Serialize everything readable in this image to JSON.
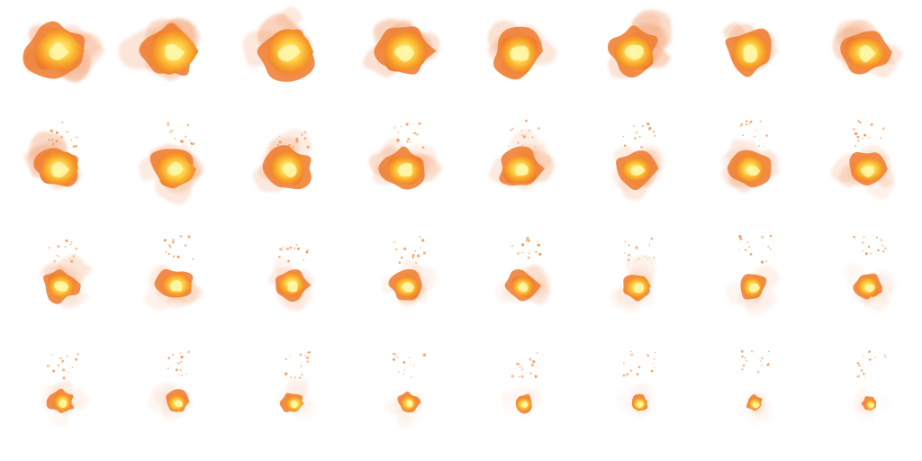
{
  "sprite_sheet": {
    "columns": 8,
    "rows": 4,
    "frame_count": 32,
    "background": "#ffffff",
    "palette": {
      "smoke_light": "#f7c0a0",
      "smoke": "#f2a070",
      "flame_outer": "#ee7a2c",
      "flame_mid": "#f7a02a",
      "flame_core": "#ffd84a",
      "flame_hot": "#fff6a8"
    }
  }
}
